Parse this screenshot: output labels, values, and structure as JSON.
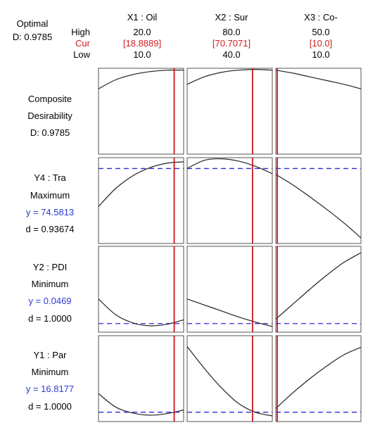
{
  "header": {
    "optimal_label": "Optimal",
    "d_label": "D: 0.9785",
    "high_label": "High",
    "cur_label": "Cur",
    "low_label": "Low"
  },
  "factors": [
    {
      "name": "X1 : Oil",
      "high": "20.0",
      "cur": "[18.8889]",
      "low": "10.0"
    },
    {
      "name": "X2 : Sur",
      "high": "80.0",
      "cur": "[70.7071]",
      "low": "40.0"
    },
    {
      "name": "X3 : Co-",
      "high": "50.0",
      "cur": "[10.0]",
      "low": "10.0"
    }
  ],
  "rows": [
    {
      "title": "Composite",
      "subtitle": "Desirability",
      "y": "",
      "d": "D: 0.9785"
    },
    {
      "title": "Y4 : Tra",
      "subtitle": "Maximum",
      "y": "y = 74.5813",
      "d": "d = 0.93674"
    },
    {
      "title": "Y2 : PDI",
      "subtitle": "Minimum",
      "y": "y = 0.0469",
      "d": "d = 1.0000"
    },
    {
      "title": "Y1 : Par",
      "subtitle": "Minimum",
      "y": "y = 16.8177",
      "d": "d = 1.0000"
    }
  ],
  "colors": {
    "current_line": "#c8161d",
    "target_line": "#2b2bd6",
    "cur_text": "#d01c1c",
    "y_text": "#2a3bd1",
    "curve": "#222222",
    "border": "#555555"
  },
  "chart_data": {
    "type": "line",
    "factor_ranges": [
      [
        10.0,
        20.0
      ],
      [
        40.0,
        80.0
      ],
      [
        10.0,
        50.0
      ]
    ],
    "current_settings": [
      18.8889,
      70.7071,
      10.0
    ],
    "target_reference": [
      null,
      74.5813,
      0.0469,
      16.8177
    ],
    "profiles": [
      [
        {
          "x": [
            10,
            12,
            14,
            16,
            18,
            20
          ],
          "y": [
            0.8,
            0.92,
            0.99,
            1.03,
            1.05,
            1.05
          ]
        },
        {
          "x": [
            40,
            48,
            56,
            64,
            72,
            80
          ],
          "y": [
            0.86,
            0.96,
            1.02,
            1.05,
            1.06,
            1.05
          ]
        },
        {
          "x": [
            10,
            18,
            26,
            34,
            42,
            50
          ],
          "y": [
            1.05,
            1.01,
            0.96,
            0.91,
            0.86,
            0.8
          ]
        }
      ],
      [
        {
          "x": [
            10,
            12,
            14,
            16,
            18,
            20
          ],
          "y": [
            0.42,
            0.66,
            0.83,
            0.94,
            1.0,
            1.02
          ]
        },
        {
          "x": [
            40,
            48,
            56,
            64,
            72,
            80
          ],
          "y": [
            0.93,
            1.04,
            1.06,
            1.03,
            0.96,
            0.86
          ]
        },
        {
          "x": [
            10,
            18,
            26,
            34,
            42,
            50
          ],
          "y": [
            0.85,
            0.71,
            0.55,
            0.38,
            0.2,
            0.0
          ]
        }
      ],
      [
        {
          "x": [
            10,
            12,
            14,
            16,
            18,
            20
          ],
          "y": [
            0.37,
            0.16,
            0.05,
            0.01,
            0.03,
            0.09
          ]
        },
        {
          "x": [
            40,
            48,
            56,
            64,
            72,
            80
          ],
          "y": [
            0.37,
            0.29,
            0.21,
            0.13,
            0.06,
            0.0
          ]
        },
        {
          "x": [
            10,
            18,
            26,
            34,
            42,
            50
          ],
          "y": [
            0.1,
            0.3,
            0.5,
            0.69,
            0.86,
            0.99
          ]
        }
      ],
      [
        {
          "x": [
            10,
            12,
            14,
            16,
            18,
            20
          ],
          "y": [
            0.3,
            0.12,
            0.04,
            0.01,
            0.03,
            0.08
          ]
        },
        {
          "x": [
            40,
            48,
            56,
            64,
            72,
            80
          ],
          "y": [
            0.93,
            0.64,
            0.38,
            0.17,
            0.05,
            0.0
          ]
        },
        {
          "x": [
            10,
            18,
            26,
            34,
            42,
            50
          ],
          "y": [
            0.1,
            0.31,
            0.5,
            0.67,
            0.82,
            0.92
          ]
        }
      ]
    ],
    "target_levels": [
      null,
      0.93,
      0.04,
      0.05
    ]
  }
}
